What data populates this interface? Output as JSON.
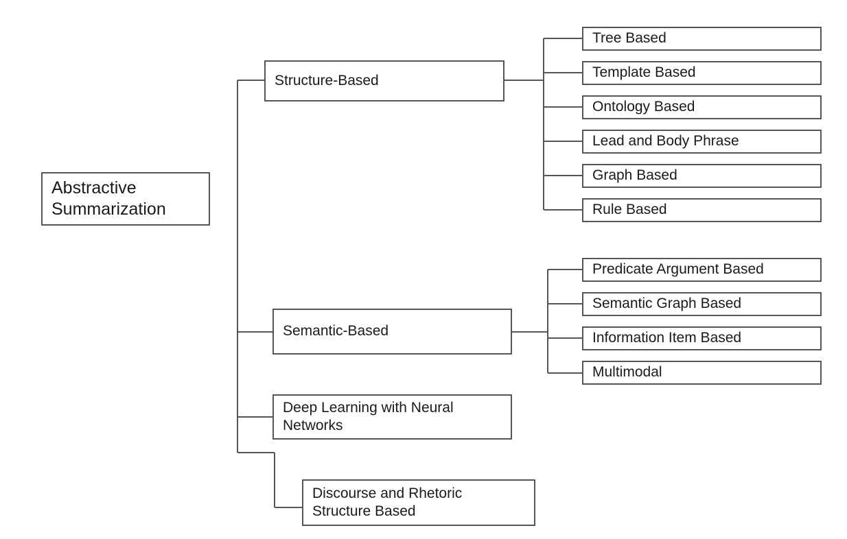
{
  "root": {
    "line1": "Abstractive",
    "line2": "Summarization"
  },
  "categories": {
    "structure": {
      "label": "Structure-Based",
      "children": [
        "Tree Based",
        "Template Based",
        "Ontology Based",
        "Lead and Body Phrase",
        "Graph Based",
        "Rule Based"
      ]
    },
    "semantic": {
      "label": "Semantic-Based",
      "children": [
        "Predicate Argument Based",
        "Semantic Graph Based",
        "Information Item Based",
        "Multimodal"
      ]
    },
    "deep": {
      "line1": "Deep Learning with Neural",
      "line2": "Networks"
    },
    "discourse": {
      "line1": "Discourse and Rhetoric",
      "line2": "Structure Based"
    }
  },
  "colors": {
    "line": "#555555",
    "border": "#555555",
    "text": "#1a1a1a"
  }
}
